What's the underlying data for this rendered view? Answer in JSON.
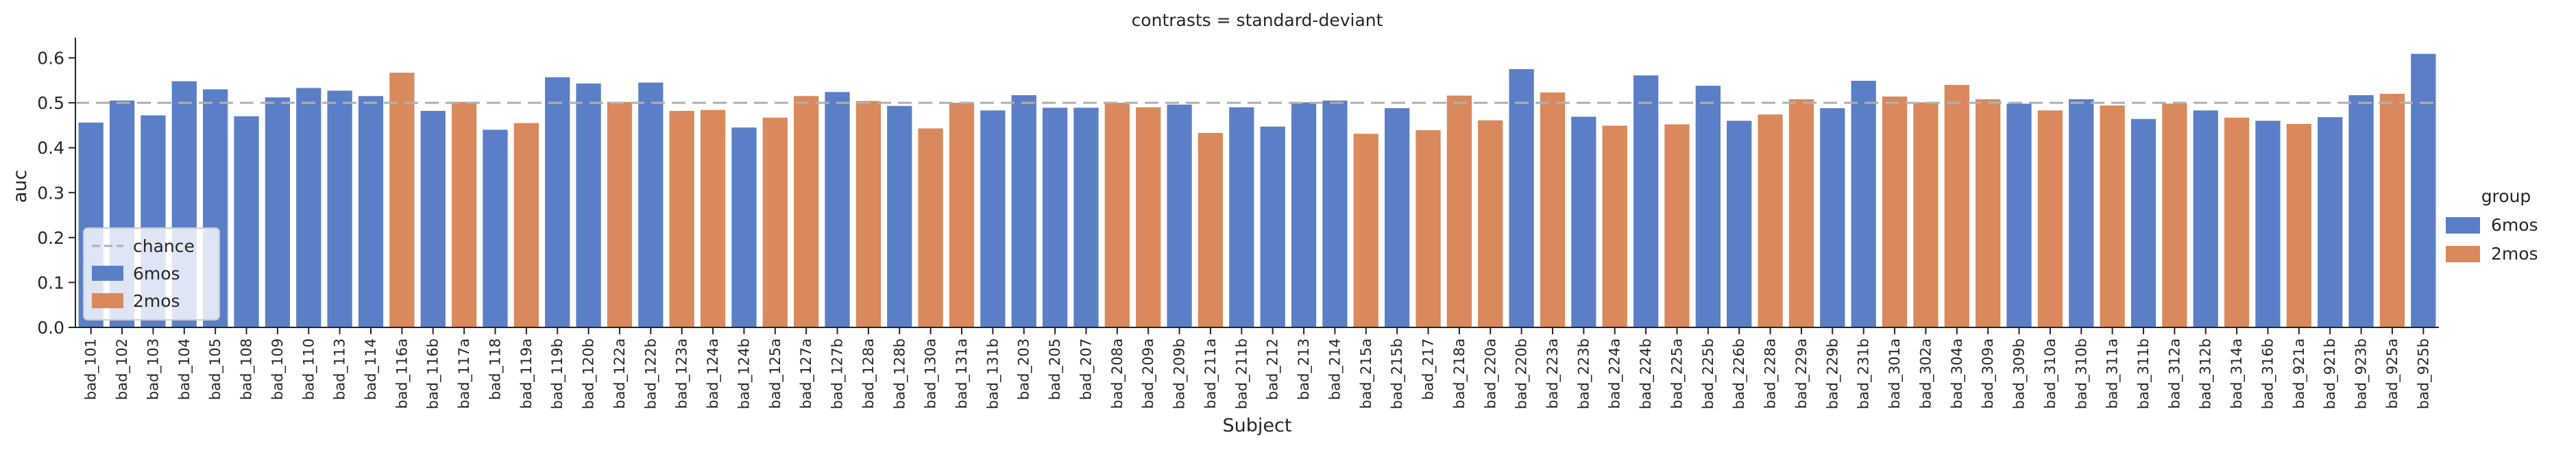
{
  "chart_data": {
    "type": "bar",
    "title": "contrasts = standard-deviant",
    "xlabel": "Subject",
    "ylabel": "auc",
    "ylim": [
      0,
      0.645
    ],
    "yticks": [
      "0.0",
      "0.1",
      "0.2",
      "0.3",
      "0.4",
      "0.5",
      "0.6"
    ],
    "grid": false,
    "chance_level": 0.5,
    "colors": {
      "6mos": "#5b7fc6",
      "2mos": "#d9895b",
      "chance": "#b0b0b0"
    },
    "inner_legend": {
      "placement": "lower-left",
      "entries": [
        "chance",
        "6mos",
        "2mos"
      ]
    },
    "outer_legend": {
      "placement": "right",
      "title": "group",
      "entries": [
        "6mos",
        "2mos"
      ]
    },
    "categories": [
      "bad_101",
      "bad_102",
      "bad_103",
      "bad_104",
      "bad_105",
      "bad_108",
      "bad_109",
      "bad_110",
      "bad_113",
      "bad_114",
      "bad_116a",
      "bad_116b",
      "bad_117a",
      "bad_118",
      "bad_119a",
      "bad_119b",
      "bad_120b",
      "bad_122a",
      "bad_122b",
      "bad_123a",
      "bad_124a",
      "bad_124b",
      "bad_125a",
      "bad_127a",
      "bad_127b",
      "bad_128a",
      "bad_128b",
      "bad_130a",
      "bad_131a",
      "bad_131b",
      "bad_203",
      "bad_205",
      "bad_207",
      "bad_208a",
      "bad_209a",
      "bad_209b",
      "bad_211a",
      "bad_211b",
      "bad_212",
      "bad_213",
      "bad_214",
      "bad_215a",
      "bad_215b",
      "bad_217",
      "bad_218a",
      "bad_220a",
      "bad_220b",
      "bad_223a",
      "bad_223b",
      "bad_224a",
      "bad_224b",
      "bad_225a",
      "bad_225b",
      "bad_226b",
      "bad_228a",
      "bad_229a",
      "bad_229b",
      "bad_231b",
      "bad_301a",
      "bad_302a",
      "bad_304a",
      "bad_309a",
      "bad_309b",
      "bad_310a",
      "bad_310b",
      "bad_311a",
      "bad_311b",
      "bad_312a",
      "bad_312b",
      "bad_314a",
      "bad_316b",
      "bad_921a",
      "bad_921b",
      "bad_923b",
      "bad_925a",
      "bad_925b"
    ],
    "groups": [
      "6mos",
      "6mos",
      "6mos",
      "6mos",
      "6mos",
      "6mos",
      "6mos",
      "6mos",
      "6mos",
      "6mos",
      "2mos",
      "6mos",
      "2mos",
      "6mos",
      "2mos",
      "6mos",
      "6mos",
      "2mos",
      "6mos",
      "2mos",
      "2mos",
      "6mos",
      "2mos",
      "2mos",
      "6mos",
      "2mos",
      "6mos",
      "2mos",
      "2mos",
      "6mos",
      "6mos",
      "6mos",
      "6mos",
      "2mos",
      "2mos",
      "6mos",
      "2mos",
      "6mos",
      "6mos",
      "6mos",
      "6mos",
      "2mos",
      "6mos",
      "2mos",
      "2mos",
      "2mos",
      "6mos",
      "2mos",
      "6mos",
      "2mos",
      "6mos",
      "2mos",
      "6mos",
      "6mos",
      "2mos",
      "2mos",
      "6mos",
      "6mos",
      "2mos",
      "2mos",
      "2mos",
      "2mos",
      "6mos",
      "2mos",
      "6mos",
      "2mos",
      "6mos",
      "2mos",
      "6mos",
      "2mos",
      "6mos",
      "2mos",
      "6mos",
      "6mos",
      "2mos",
      "6mos"
    ],
    "values": [
      0.456,
      0.505,
      0.472,
      0.548,
      0.53,
      0.47,
      0.512,
      0.533,
      0.527,
      0.515,
      0.567,
      0.482,
      0.502,
      0.44,
      0.455,
      0.557,
      0.543,
      0.502,
      0.545,
      0.482,
      0.484,
      0.445,
      0.467,
      0.515,
      0.524,
      0.504,
      0.493,
      0.443,
      0.5,
      0.483,
      0.517,
      0.489,
      0.489,
      0.5,
      0.49,
      0.496,
      0.433,
      0.49,
      0.447,
      0.501,
      0.505,
      0.431,
      0.488,
      0.439,
      0.516,
      0.461,
      0.575,
      0.523,
      0.469,
      0.449,
      0.561,
      0.452,
      0.538,
      0.46,
      0.474,
      0.508,
      0.488,
      0.549,
      0.514,
      0.501,
      0.54,
      0.508,
      0.498,
      0.483,
      0.508,
      0.494,
      0.464,
      0.498,
      0.483,
      0.467,
      0.46,
      0.453,
      0.468,
      0.517,
      0.52,
      0.609
    ]
  }
}
